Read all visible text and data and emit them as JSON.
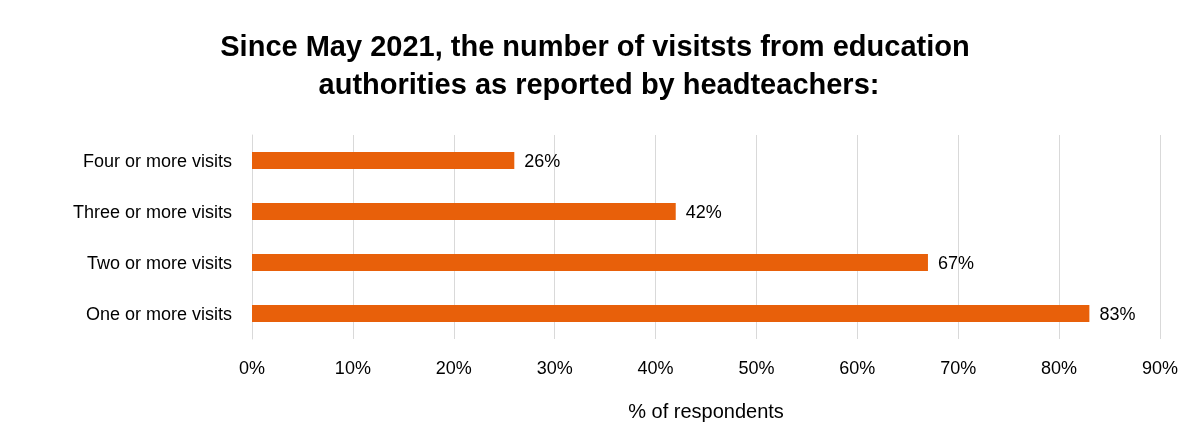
{
  "chart_data": {
    "type": "bar",
    "orientation": "horizontal",
    "title": "Since May 2021, the number of visitsts from education authorities as reported by headteachers:",
    "xlabel": "% of respondents",
    "categories": [
      "Four or more visits",
      "Three or more visits",
      "Two or more visits",
      "One or more visits"
    ],
    "values": [
      26,
      42,
      67,
      83
    ],
    "value_labels": [
      "26%",
      "42%",
      "67%",
      "83%"
    ],
    "color": "#e8600a",
    "xlim": [
      0,
      90
    ],
    "xticks": [
      {
        "value": 0,
        "label": "0%"
      },
      {
        "value": 10,
        "label": "10%"
      },
      {
        "value": 20,
        "label": "20%"
      },
      {
        "value": 30,
        "label": "30%"
      },
      {
        "value": 40,
        "label": "40%"
      },
      {
        "value": 50,
        "label": "50%"
      },
      {
        "value": 60,
        "label": "60%"
      },
      {
        "value": 70,
        "label": "70%"
      },
      {
        "value": 80,
        "label": "80%"
      },
      {
        "value": 90,
        "label": "90%"
      }
    ],
    "grid": "x"
  }
}
